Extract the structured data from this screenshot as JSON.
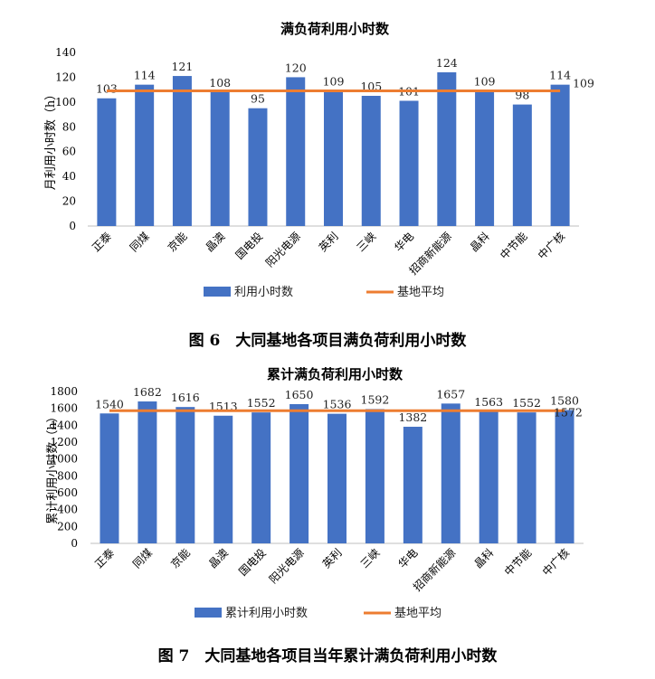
{
  "chart_data": [
    {
      "type": "bar",
      "title": "满负荷利用小时数",
      "ylabel": "月利用小时数（h）",
      "ylim": [
        0,
        140
      ],
      "yticks": [
        0,
        20,
        40,
        60,
        80,
        100,
        120,
        140
      ],
      "categories": [
        "正泰",
        "同煤",
        "京能",
        "晶澳",
        "国电投",
        "阳光电源",
        "英利",
        "三峡",
        "华电",
        "招商新能源",
        "晶科",
        "中节能",
        "中广核"
      ],
      "series": [
        {
          "name": "利用小时数",
          "type": "bar",
          "color": "#4472C4",
          "values": [
            103,
            114,
            121,
            108,
            95,
            120,
            109,
            105,
            101,
            124,
            109,
            98,
            114
          ]
        },
        {
          "name": "基地平均",
          "type": "line",
          "color": "#ED7D31",
          "value": 109
        }
      ],
      "avg_label": "109",
      "grid": false,
      "legend": "bottom"
    },
    {
      "type": "bar",
      "title": "累计满负荷利用小时数",
      "ylabel": "累计利用小时数（h）",
      "ylim": [
        0,
        1800
      ],
      "yticks": [
        0,
        200,
        400,
        600,
        800,
        1000,
        1200,
        1400,
        1600,
        1800
      ],
      "categories": [
        "正泰",
        "同煤",
        "京能",
        "晶澳",
        "国电投",
        "阳光电源",
        "英利",
        "三峡",
        "华电",
        "招商新能源",
        "晶科",
        "中节能",
        "中广核"
      ],
      "series": [
        {
          "name": "累计利用小时数",
          "type": "bar",
          "color": "#4472C4",
          "values": [
            1540,
            1682,
            1616,
            1513,
            1552,
            1650,
            1536,
            1592,
            1382,
            1657,
            1563,
            1552,
            1580
          ]
        },
        {
          "name": "基地平均",
          "type": "line",
          "color": "#ED7D31",
          "value": 1572
        }
      ],
      "avg_label": "1572",
      "grid": false,
      "legend": "bottom"
    }
  ],
  "captions": {
    "fig6": "图 6　大同基地各项目满负荷利用小时数",
    "fig7": "图 7　大同基地各项目当年累计满负荷利用小时数"
  }
}
